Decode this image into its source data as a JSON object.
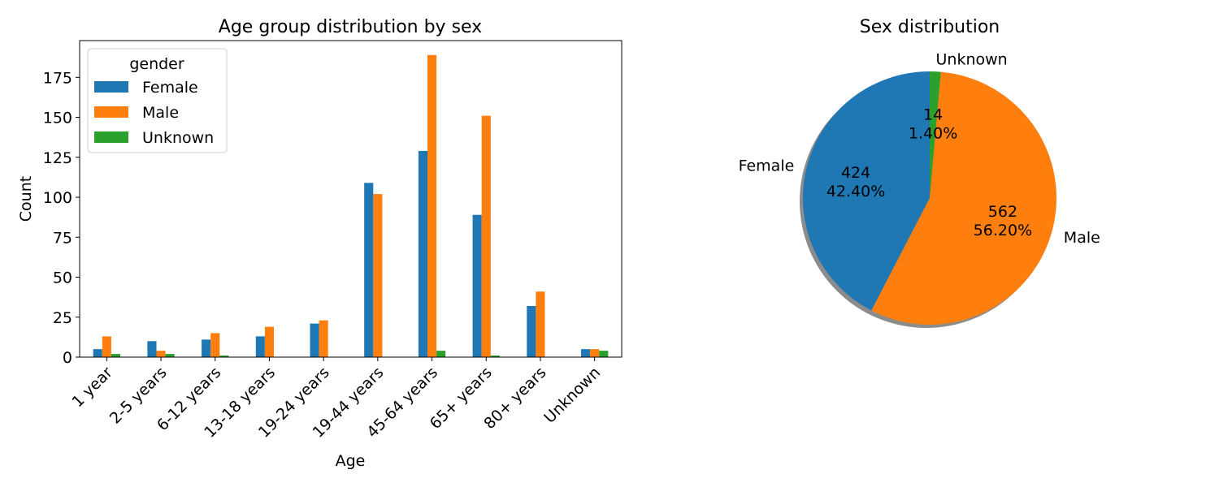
{
  "chart_data": [
    {
      "type": "bar",
      "title": "Age group distribution by sex",
      "xlabel": "Age",
      "ylabel": "Count",
      "ylim": [
        0,
        198
      ],
      "yticks": [
        0,
        25,
        50,
        75,
        100,
        125,
        150,
        175
      ],
      "grid": false,
      "legend": {
        "title": "gender",
        "placement": "top-left"
      },
      "categories": [
        "1 year",
        "2-5 years",
        "6-12 years",
        "13-18 years",
        "19-24 years",
        "19-44 years",
        "45-64 years",
        "65+ years",
        "80+ years",
        "Unknown"
      ],
      "series": [
        {
          "name": "Female",
          "color": "#1f77b4",
          "values": [
            5,
            10,
            11,
            13,
            21,
            109,
            129,
            89,
            32,
            5
          ]
        },
        {
          "name": "Male",
          "color": "#ff7f0e",
          "values": [
            13,
            4,
            15,
            19,
            23,
            102,
            189,
            151,
            41,
            5
          ]
        },
        {
          "name": "Unknown",
          "color": "#2ca02c",
          "values": [
            2,
            2,
            1,
            0,
            0,
            0,
            4,
            1,
            0,
            4
          ]
        }
      ]
    },
    {
      "type": "pie",
      "title": "Sex distribution",
      "shadow": true,
      "slices": [
        {
          "label": "Female",
          "value": 424,
          "percent_label": "42.40%",
          "count_label": "424",
          "color": "#1f77b4"
        },
        {
          "label": "Male",
          "value": 562,
          "percent_label": "56.20%",
          "count_label": "562",
          "color": "#ff7f0e"
        },
        {
          "label": "Unknown",
          "value": 14,
          "percent_label": "1.40%",
          "count_label": "14",
          "color": "#2ca02c"
        }
      ]
    }
  ]
}
